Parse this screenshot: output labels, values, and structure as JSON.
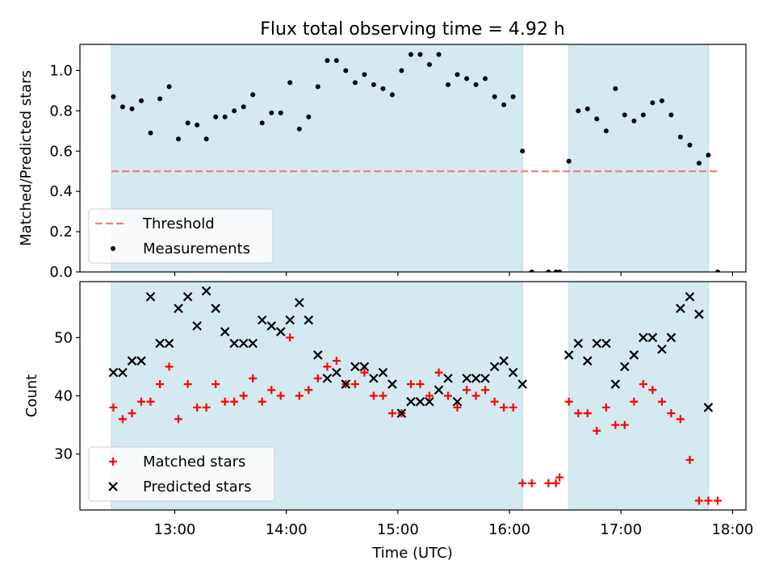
{
  "chart_data": {
    "title": "Flux total observing time = 4.92 h",
    "xlabel": "Time (UTC)",
    "x_ticks": [
      "13:00",
      "14:00",
      "15:00",
      "16:00",
      "17:00",
      "18:00"
    ],
    "x_tick_hours": [
      13,
      14,
      15,
      16,
      17,
      18
    ],
    "x_range_hours": [
      12.15,
      18.12
    ],
    "observing_windows_hours": [
      [
        12.433,
        16.117
      ],
      [
        16.533,
        17.783
      ]
    ],
    "window_color": "#d4eaf0",
    "panels": [
      {
        "type": "scatter",
        "ylabel": "Matched/Predicted stars",
        "ylim": [
          0.0,
          1.13
        ],
        "yticks": [
          0.0,
          0.2,
          0.4,
          0.6,
          0.8,
          1.0
        ],
        "ytick_labels": [
          "0.0",
          "0.2",
          "0.4",
          "0.6",
          "0.8",
          "1.0"
        ],
        "threshold": {
          "name": "Threshold",
          "value": 0.5,
          "x_range": [
            12.433,
            17.867
          ],
          "color": "#f08080"
        },
        "series": [
          {
            "name": "Measurements",
            "marker": "dot",
            "color": "#000000",
            "x": [
              12.45,
              12.533,
              12.617,
              12.7,
              12.783,
              12.867,
              12.95,
              13.033,
              13.117,
              13.2,
              13.283,
              13.367,
              13.45,
              13.533,
              13.617,
              13.7,
              13.783,
              13.867,
              13.95,
              14.033,
              14.117,
              14.2,
              14.283,
              14.367,
              14.45,
              14.533,
              14.617,
              14.7,
              14.783,
              14.867,
              14.95,
              15.033,
              15.117,
              15.2,
              15.283,
              15.367,
              15.45,
              15.533,
              15.617,
              15.7,
              15.783,
              15.867,
              15.95,
              16.033,
              16.117,
              16.2,
              16.35,
              16.417,
              16.45,
              16.533,
              16.617,
              16.7,
              16.783,
              16.867,
              16.95,
              17.033,
              17.117,
              17.2,
              17.283,
              17.367,
              17.45,
              17.533,
              17.617,
              17.7,
              17.783,
              17.867
            ],
            "y": [
              0.87,
              0.82,
              0.81,
              0.85,
              0.69,
              0.86,
              0.92,
              0.66,
              0.74,
              0.73,
              0.66,
              0.77,
              0.77,
              0.8,
              0.82,
              0.88,
              0.74,
              0.79,
              0.79,
              0.94,
              0.71,
              0.77,
              0.92,
              1.05,
              1.05,
              1.0,
              0.94,
              0.98,
              0.93,
              0.91,
              0.88,
              1.0,
              1.08,
              1.08,
              1.03,
              1.08,
              0.93,
              0.98,
              0.96,
              0.93,
              0.96,
              0.87,
              0.83,
              0.87,
              0.6,
              0.0,
              0.0,
              0.0,
              0.0,
              0.55,
              0.8,
              0.81,
              0.76,
              0.7,
              0.91,
              0.78,
              0.75,
              0.78,
              0.84,
              0.85,
              0.78,
              0.67,
              0.63,
              0.54,
              0.58,
              0.0
            ]
          }
        ],
        "legend": [
          "Threshold",
          "Measurements"
        ],
        "legend_position": "lower-left"
      },
      {
        "type": "scatter",
        "ylabel": "Count",
        "ylim": [
          20.4,
          59.6
        ],
        "yticks": [
          30,
          40,
          50
        ],
        "ytick_labels": [
          "30",
          "40",
          "50"
        ],
        "series": [
          {
            "name": "Matched stars",
            "marker": "plus",
            "color": "#ff0000",
            "x": [
              12.45,
              12.533,
              12.617,
              12.7,
              12.783,
              12.867,
              12.95,
              13.033,
              13.117,
              13.2,
              13.283,
              13.367,
              13.45,
              13.533,
              13.617,
              13.7,
              13.783,
              13.867,
              13.95,
              14.033,
              14.117,
              14.2,
              14.283,
              14.367,
              14.45,
              14.533,
              14.617,
              14.7,
              14.783,
              14.867,
              14.95,
              15.033,
              15.117,
              15.2,
              15.283,
              15.367,
              15.45,
              15.533,
              15.617,
              15.7,
              15.783,
              15.867,
              15.95,
              16.033,
              16.117,
              16.2,
              16.35,
              16.417,
              16.45,
              16.533,
              16.617,
              16.7,
              16.783,
              16.867,
              16.95,
              17.033,
              17.117,
              17.2,
              17.283,
              17.367,
              17.45,
              17.533,
              17.617,
              17.7,
              17.783,
              17.867
            ],
            "y": [
              38,
              36,
              37,
              39,
              39,
              42,
              45,
              36,
              42,
              38,
              38,
              42,
              39,
              39,
              40,
              43,
              39,
              41,
              40,
              50,
              40,
              41,
              43,
              45,
              46,
              42,
              42,
              44,
              40,
              40,
              37,
              37,
              42,
              42,
              40,
              44,
              40,
              38,
              41,
              40,
              41,
              39,
              38,
              38,
              25,
              25,
              25,
              25,
              26,
              39,
              37,
              37,
              34,
              38,
              35,
              35,
              39,
              42,
              41,
              39,
              37,
              36,
              29,
              22,
              22,
              22
            ]
          },
          {
            "name": "Predicted stars",
            "marker": "x",
            "color": "#000000",
            "x": [
              12.45,
              12.533,
              12.617,
              12.7,
              12.783,
              12.867,
              12.95,
              13.033,
              13.117,
              13.2,
              13.283,
              13.367,
              13.45,
              13.533,
              13.617,
              13.7,
              13.783,
              13.867,
              13.95,
              14.033,
              14.117,
              14.2,
              14.283,
              14.367,
              14.45,
              14.533,
              14.617,
              14.7,
              14.783,
              14.867,
              14.95,
              15.033,
              15.117,
              15.2,
              15.283,
              15.367,
              15.45,
              15.533,
              15.617,
              15.7,
              15.783,
              15.867,
              15.95,
              16.033,
              16.117,
              16.533,
              16.617,
              16.7,
              16.783,
              16.867,
              16.95,
              17.033,
              17.117,
              17.2,
              17.283,
              17.367,
              17.45,
              17.533,
              17.617,
              17.7,
              17.783
            ],
            "y": [
              44,
              44,
              46,
              46,
              57,
              49,
              49,
              55,
              57,
              52,
              58,
              55,
              51,
              49,
              49,
              49,
              53,
              52,
              51,
              53,
              56,
              53,
              47,
              43,
              44,
              42,
              45,
              45,
              43,
              44,
              42,
              37,
              39,
              39,
              39,
              41,
              43,
              39,
              43,
              43,
              43,
              45,
              46,
              44,
              42,
              47,
              49,
              46,
              49,
              49,
              42,
              45,
              47,
              50,
              50,
              48,
              50,
              55,
              57,
              54,
              38
            ]
          }
        ],
        "legend": [
          "Matched stars",
          "Predicted stars"
        ],
        "legend_position": "lower-left"
      }
    ]
  }
}
